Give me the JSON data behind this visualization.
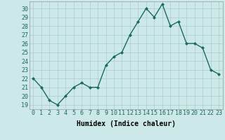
{
  "x": [
    0,
    1,
    2,
    3,
    4,
    5,
    6,
    7,
    8,
    9,
    10,
    11,
    12,
    13,
    14,
    15,
    16,
    17,
    18,
    19,
    20,
    21,
    22,
    23
  ],
  "y": [
    22,
    21,
    19.5,
    19,
    20,
    21,
    21.5,
    21,
    21,
    23.5,
    24.5,
    25,
    27,
    28.5,
    30,
    29,
    30.5,
    28,
    28.5,
    26,
    26,
    25.5,
    23,
    22.5
  ],
  "line_color": "#1a6b5a",
  "marker": "D",
  "marker_size": 2.0,
  "marker_color": "#1a6b5a",
  "bg_color": "#cce8e8",
  "grid_color": "#aacccc",
  "xlabel": "Humidex (Indice chaleur)",
  "xlim": [
    -0.5,
    23.5
  ],
  "ylim": [
    18.5,
    30.8
  ],
  "yticks": [
    19,
    20,
    21,
    22,
    23,
    24,
    25,
    26,
    27,
    28,
    29,
    30
  ],
  "xtick_labels": [
    "0",
    "1",
    "2",
    "3",
    "4",
    "5",
    "6",
    "7",
    "8",
    "9",
    "10",
    "11",
    "12",
    "13",
    "14",
    "15",
    "16",
    "17",
    "18",
    "19",
    "20",
    "21",
    "22",
    "23"
  ],
  "xlabel_fontsize": 7,
  "tick_fontsize": 6,
  "linewidth": 1.0
}
